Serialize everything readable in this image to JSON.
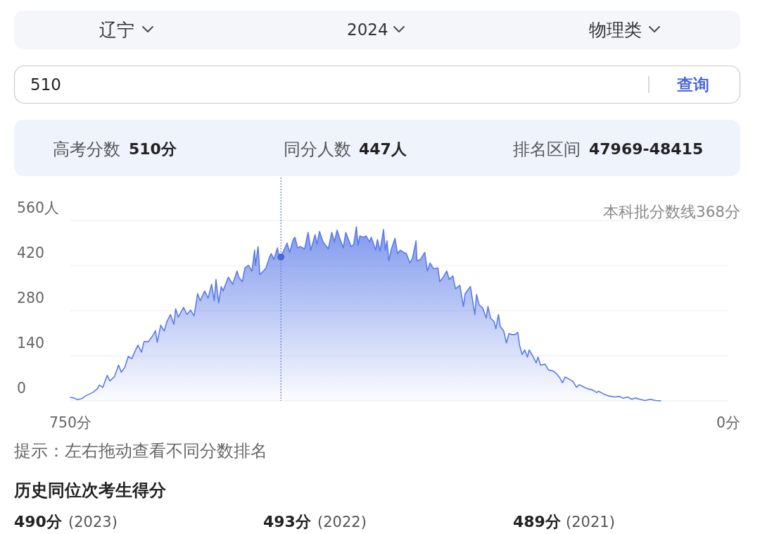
{
  "chart_data": {
    "type": "area",
    "annotations": [
      "辽宁",
      "2024",
      "物理类",
      "510",
      "查询",
      "高考分数",
      "510分",
      "同分人数",
      "447人",
      "排名区间",
      "47969-48415",
      "本科批分数线368分",
      "提示：左右拖动查看不同分数排名",
      "历史同位次考生得分",
      "490分",
      "(2023)",
      "493分",
      "(2022)",
      "489分",
      "(2021)"
    ],
    "x": [
      750,
      746,
      742,
      737,
      733,
      729,
      724,
      719,
      717,
      713,
      708,
      705,
      700,
      695,
      692,
      688,
      684,
      680,
      678,
      673,
      669,
      666,
      661,
      656,
      653,
      651,
      647,
      643,
      640,
      636,
      632,
      630,
      627,
      621,
      617,
      613,
      609,
      605,
      602,
      597,
      593,
      589,
      586,
      584,
      581,
      578,
      576,
      570,
      565,
      560,
      558,
      554,
      551,
      547,
      543,
      540,
      539,
      536,
      534,
      530,
      527,
      523,
      521,
      518,
      514,
      512,
      510,
      506,
      503,
      500,
      496,
      494,
      491,
      488,
      483,
      479,
      476,
      471,
      469,
      466,
      462,
      456,
      452,
      449,
      446,
      443,
      439,
      436,
      433,
      430,
      427,
      424,
      422,
      420,
      416,
      413,
      409,
      407,
      402,
      400,
      397,
      393,
      391,
      389,
      387,
      384,
      380,
      377,
      374,
      370,
      367,
      363,
      360,
      356,
      355,
      351,
      346,
      343,
      340,
      336,
      331,
      329,
      325,
      321,
      318,
      314,
      311,
      306,
      302,
      300,
      294,
      289,
      287,
      284,
      280,
      276,
      274,
      271,
      267,
      265,
      262,
      260,
      256,
      253,
      250,
      247,
      243,
      240,
      238,
      235,
      232,
      229,
      227,
      223,
      219,
      217,
      214,
      209,
      205,
      200,
      196,
      192,
      189,
      186,
      181,
      177,
      173,
      170,
      166,
      161,
      155,
      150,
      148,
      142,
      136,
      129,
      124,
      120,
      115,
      110,
      106,
      101,
      95,
      89,
      83,
      77
    ],
    "series": [
      {
        "color": "#5b7be8",
        "values": [
          11,
          9,
          4,
          7,
          15,
          20,
          27,
          38,
          49,
          42,
          79,
          62,
          74,
          111,
          89,
          104,
          138,
          131,
          144,
          173,
          151,
          184,
          184,
          203,
          218,
          182,
          235,
          217,
          246,
          268,
          238,
          286,
          260,
          290,
          268,
          282,
          264,
          333,
          311,
          341,
          319,
          362,
          311,
          377,
          304,
          355,
          341,
          384,
          362,
          403,
          384,
          370,
          413,
          421,
          403,
          468,
          421,
          479,
          392,
          403,
          413,
          446,
          457,
          439,
          475,
          446,
          447,
          472,
          490,
          461,
          501,
          508,
          475,
          479,
          472,
          523,
          468,
          516,
          486,
          526,
          494,
          472,
          523,
          494,
          530,
          505,
          475,
          523,
          501,
          479,
          486,
          541,
          483,
          512,
          508,
          512,
          494,
          508,
          468,
          501,
          465,
          532,
          468,
          497,
          435,
          472,
          505,
          457,
          468,
          461,
          457,
          428,
          443,
          497,
          435,
          439,
          461,
          403,
          428,
          410,
          413,
          370,
          384,
          403,
          377,
          388,
          348,
          359,
          293,
          333,
          355,
          268,
          330,
          297,
          289,
          257,
          293,
          257,
          246,
          224,
          268,
          231,
          217,
          180,
          209,
          206,
          206,
          213,
          173,
          144,
          158,
          136,
          158,
          140,
          118,
          136,
          111,
          114,
          96,
          93,
          85,
          71,
          56,
          74,
          67,
          60,
          42,
          50,
          45,
          38,
          34,
          26,
          30,
          21,
          15,
          12,
          14,
          8,
          12,
          5,
          9,
          5,
          1,
          5,
          1,
          0
        ]
      },
      {
        "type": "scatter",
        "color": "#4a68dc",
        "marker": "circle",
        "x": [
          510
        ],
        "values": [
          447
        ]
      }
    ],
    "xlim": [
      750,
      0
    ],
    "xticks": [
      {
        "value": 750,
        "label": "750分"
      },
      {
        "value": 0,
        "label": "0分"
      }
    ],
    "ylim": [
      0,
      560
    ],
    "yticks": [
      0,
      140,
      280,
      420,
      {
        "value": 560,
        "label": "560人"
      }
    ],
    "grid": "y",
    "ref_lines": [
      {
        "axis": "x",
        "value": 510,
        "line_style": "dotted",
        "color": "#6f80d0"
      }
    ]
  }
}
